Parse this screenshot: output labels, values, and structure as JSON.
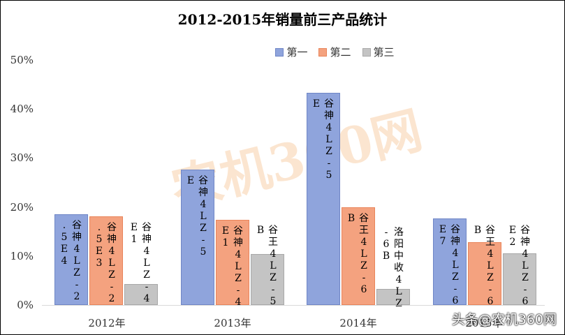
{
  "chart_data": {
    "type": "bar",
    "title": "2012-2015年销量前三产品统计",
    "categories": [
      "2012年",
      "2013年",
      "2014年",
      "2015年"
    ],
    "series": [
      {
        "name": "第一",
        "color": "#8fa4dc",
        "values": [
          18.5,
          27.6,
          43.3,
          17.7
        ],
        "labels": [
          "谷神4LZ-2.5E4",
          "谷神4LZ-5E",
          "谷神4LZ-5E",
          "谷神4LZ-6E7"
        ]
      },
      {
        "name": "第二",
        "color": "#f4a27f",
        "values": [
          18.1,
          17.4,
          20.0,
          12.8
        ],
        "labels": [
          "谷神4LZ-2.5E3",
          "谷神4LZ-4E1",
          "谷王4LZ-6B",
          "谷王4LZ-6B"
        ]
      },
      {
        "name": "第三",
        "color": "#c4c4c4",
        "values": [
          4.3,
          10.4,
          3.3,
          10.5
        ],
        "labels": [
          "谷神4LZ-4E1",
          "谷王4LZ-5B",
          "洛阳中收4LZ-6B",
          "谷神4LZ-6E2"
        ]
      }
    ],
    "xlabel": "",
    "ylabel": "",
    "ylim": [
      0,
      50
    ],
    "yticks": [
      "0%",
      "10%",
      "20%",
      "30%",
      "40%",
      "50%"
    ],
    "grid": false,
    "legend_position": "top"
  },
  "watermark": {
    "text": "农机360网",
    "credit": "头条@农机360网"
  }
}
